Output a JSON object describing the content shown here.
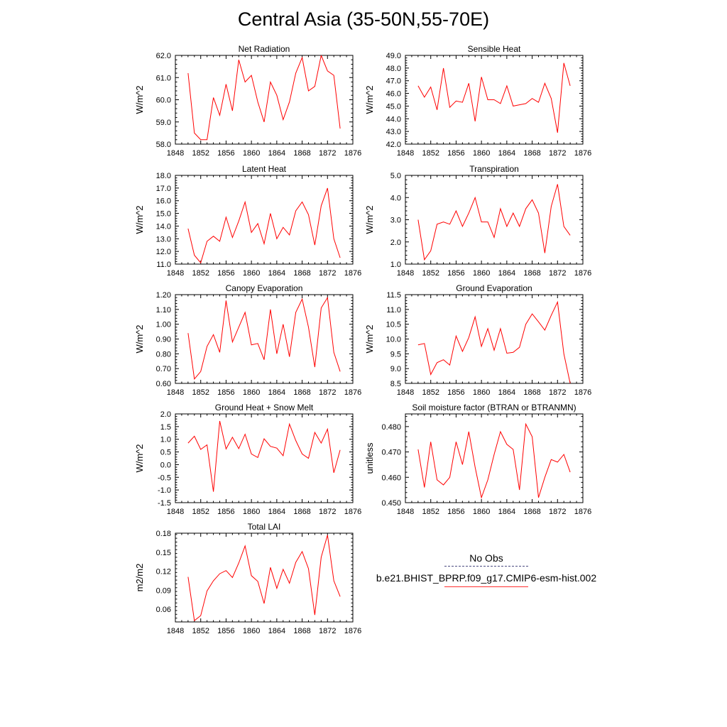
{
  "page": {
    "title": "Central Asia (35-50N,55-70E)"
  },
  "legend": {
    "obs_label": "No Obs",
    "case_label": "b.e21.BHIST_BPRP.f09_g17.CMIP6-esm-hist.002",
    "obs_line_color": "#3a3a8a",
    "case_line_color": "#ff0000"
  },
  "chart_data": [
    {
      "type": "line",
      "title": "Net Radiation",
      "ylabel": "W/m^2",
      "xlim": [
        1848,
        1876
      ],
      "ylim": [
        58.0,
        62.0
      ],
      "x_ticks": [
        1848,
        1852,
        1856,
        1860,
        1864,
        1868,
        1872,
        1876
      ],
      "y_ticks": [
        "58.0",
        "59.0",
        "60.0",
        "61.0",
        "62.0"
      ],
      "line_color": "#ff0000",
      "x": [
        1850,
        1851,
        1852,
        1853,
        1854,
        1855,
        1856,
        1857,
        1858,
        1859,
        1860,
        1861,
        1862,
        1863,
        1864,
        1865,
        1866,
        1867,
        1868,
        1869,
        1870,
        1871,
        1872,
        1873,
        1874
      ],
      "values": [
        61.2,
        58.5,
        58.2,
        58.2,
        60.1,
        59.3,
        60.7,
        59.5,
        61.8,
        60.8,
        61.1,
        59.9,
        59.0,
        60.8,
        60.2,
        59.1,
        59.9,
        61.2,
        61.9,
        60.4,
        60.6,
        62.0,
        61.3,
        61.1,
        58.7
      ]
    },
    {
      "type": "line",
      "title": "Sensible Heat",
      "ylabel": "W/m^2",
      "xlim": [
        1848,
        1876
      ],
      "ylim": [
        42.0,
        49.0
      ],
      "x_ticks": [
        1848,
        1852,
        1856,
        1860,
        1864,
        1868,
        1872,
        1876
      ],
      "y_ticks": [
        "42.0",
        "43.0",
        "44.0",
        "45.0",
        "46.0",
        "47.0",
        "48.0",
        "49.0"
      ],
      "line_color": "#ff0000",
      "x": [
        1850,
        1851,
        1852,
        1853,
        1854,
        1855,
        1856,
        1857,
        1858,
        1859,
        1860,
        1861,
        1862,
        1863,
        1864,
        1865,
        1866,
        1867,
        1868,
        1869,
        1870,
        1871,
        1872,
        1873,
        1874
      ],
      "values": [
        46.6,
        45.7,
        46.5,
        44.7,
        48.0,
        44.9,
        45.4,
        45.3,
        46.8,
        43.8,
        47.3,
        45.5,
        45.5,
        45.2,
        46.6,
        45.0,
        45.1,
        45.2,
        45.6,
        45.3,
        46.8,
        45.6,
        42.9,
        48.4,
        46.6
      ]
    },
    {
      "type": "line",
      "title": "Latent Heat",
      "ylabel": "W/m^2",
      "xlim": [
        1848,
        1876
      ],
      "ylim": [
        11.0,
        18.0
      ],
      "x_ticks": [
        1848,
        1852,
        1856,
        1860,
        1864,
        1868,
        1872,
        1876
      ],
      "y_ticks": [
        "11.0",
        "12.0",
        "13.0",
        "14.0",
        "15.0",
        "16.0",
        "17.0",
        "18.0"
      ],
      "line_color": "#ff0000",
      "x": [
        1850,
        1851,
        1852,
        1853,
        1854,
        1855,
        1856,
        1857,
        1858,
        1859,
        1860,
        1861,
        1862,
        1863,
        1864,
        1865,
        1866,
        1867,
        1868,
        1869,
        1870,
        1871,
        1872,
        1873,
        1874
      ],
      "values": [
        13.8,
        11.7,
        11.1,
        12.8,
        13.2,
        12.8,
        14.7,
        13.1,
        14.4,
        15.9,
        13.5,
        14.2,
        12.6,
        15.0,
        13.0,
        13.9,
        13.3,
        15.2,
        15.9,
        14.9,
        12.5,
        15.6,
        17.0,
        13.0,
        11.5
      ]
    },
    {
      "type": "line",
      "title": "Transpiration",
      "ylabel": "W/m^2",
      "xlim": [
        1848,
        1876
      ],
      "ylim": [
        1.0,
        5.0
      ],
      "x_ticks": [
        1848,
        1852,
        1856,
        1860,
        1864,
        1868,
        1872,
        1876
      ],
      "y_ticks": [
        "1.0",
        "2.0",
        "3.0",
        "4.0",
        "5.0"
      ],
      "line_color": "#ff0000",
      "x": [
        1850,
        1851,
        1852,
        1853,
        1854,
        1855,
        1856,
        1857,
        1858,
        1859,
        1860,
        1861,
        1862,
        1863,
        1864,
        1865,
        1866,
        1867,
        1868,
        1869,
        1870,
        1871,
        1872,
        1873,
        1874
      ],
      "values": [
        3.0,
        1.2,
        1.6,
        2.8,
        2.9,
        2.8,
        3.4,
        2.7,
        3.3,
        4.0,
        2.9,
        2.9,
        2.2,
        3.5,
        2.7,
        3.3,
        2.7,
        3.5,
        3.9,
        3.3,
        1.5,
        3.6,
        4.6,
        2.7,
        2.3
      ]
    },
    {
      "type": "line",
      "title": "Canopy Evaporation",
      "ylabel": "W/m^2",
      "xlim": [
        1848,
        1876
      ],
      "ylim": [
        0.6,
        1.2
      ],
      "x_ticks": [
        1848,
        1852,
        1856,
        1860,
        1864,
        1868,
        1872,
        1876
      ],
      "y_ticks": [
        "0.60",
        "0.70",
        "0.80",
        "0.90",
        "1.00",
        "1.10",
        "1.20"
      ],
      "line_color": "#ff0000",
      "x": [
        1850,
        1851,
        1852,
        1853,
        1854,
        1855,
        1856,
        1857,
        1858,
        1859,
        1860,
        1861,
        1862,
        1863,
        1864,
        1865,
        1866,
        1867,
        1868,
        1869,
        1870,
        1871,
        1872,
        1873,
        1874
      ],
      "values": [
        0.94,
        0.63,
        0.68,
        0.85,
        0.93,
        0.81,
        1.16,
        0.88,
        0.98,
        1.08,
        0.86,
        0.87,
        0.76,
        1.1,
        0.8,
        1.0,
        0.78,
        1.08,
        1.17,
        0.98,
        0.71,
        1.11,
        1.18,
        0.81,
        0.68
      ]
    },
    {
      "type": "line",
      "title": "Ground Evaporation",
      "ylabel": "W/m^2",
      "xlim": [
        1848,
        1876
      ],
      "ylim": [
        8.5,
        11.5
      ],
      "x_ticks": [
        1848,
        1852,
        1856,
        1860,
        1864,
        1868,
        1872,
        1876
      ],
      "y_ticks": [
        "8.5",
        "9.0",
        "9.5",
        "10.0",
        "10.5",
        "11.0",
        "11.5"
      ],
      "line_color": "#ff0000",
      "x": [
        1850,
        1851,
        1852,
        1853,
        1854,
        1855,
        1856,
        1857,
        1858,
        1859,
        1860,
        1861,
        1862,
        1863,
        1864,
        1865,
        1866,
        1867,
        1868,
        1869,
        1870,
        1871,
        1872,
        1873,
        1874
      ],
      "values": [
        9.8,
        9.85,
        8.8,
        9.2,
        9.3,
        9.12,
        10.1,
        9.58,
        10.05,
        10.75,
        9.75,
        10.35,
        9.62,
        10.35,
        9.52,
        9.55,
        9.72,
        10.5,
        10.85,
        10.58,
        10.3,
        10.8,
        11.25,
        9.5,
        8.5
      ]
    },
    {
      "type": "line",
      "title": "Ground Heat + Snow Melt",
      "ylabel": "W/m^2",
      "xlim": [
        1848,
        1876
      ],
      "ylim": [
        -1.5,
        2.0
      ],
      "x_ticks": [
        1848,
        1852,
        1856,
        1860,
        1864,
        1868,
        1872,
        1876
      ],
      "y_ticks": [
        "-1.5",
        "-1.0",
        "-0.5",
        "0.0",
        "0.5",
        "1.0",
        "1.5",
        "2.0"
      ],
      "line_color": "#ff0000",
      "x": [
        1850,
        1851,
        1852,
        1853,
        1854,
        1855,
        1856,
        1857,
        1858,
        1859,
        1860,
        1861,
        1862,
        1863,
        1864,
        1865,
        1866,
        1867,
        1868,
        1869,
        1870,
        1871,
        1872,
        1873,
        1874
      ],
      "values": [
        0.85,
        1.12,
        0.6,
        0.78,
        -1.07,
        1.72,
        0.62,
        1.08,
        0.63,
        1.2,
        0.42,
        0.28,
        1.02,
        0.72,
        0.65,
        0.35,
        1.6,
        0.95,
        0.42,
        0.25,
        1.27,
        0.85,
        1.4,
        -0.32,
        0.58
      ]
    },
    {
      "type": "line",
      "title": "Soil moisture factor (BTRAN or BTRANMN)",
      "ylabel": "unitless",
      "xlim": [
        1848,
        1876
      ],
      "ylim": [
        0.45,
        0.485
      ],
      "x_ticks": [
        1848,
        1852,
        1856,
        1860,
        1864,
        1868,
        1872,
        1876
      ],
      "y_ticks": [
        "0.450",
        "0.460",
        "0.470",
        "0.480"
      ],
      "line_color": "#ff0000",
      "x": [
        1850,
        1851,
        1852,
        1853,
        1854,
        1855,
        1856,
        1857,
        1858,
        1859,
        1860,
        1861,
        1862,
        1863,
        1864,
        1865,
        1866,
        1867,
        1868,
        1869,
        1870,
        1871,
        1872,
        1873,
        1874
      ],
      "values": [
        0.471,
        0.456,
        0.474,
        0.459,
        0.457,
        0.46,
        0.474,
        0.465,
        0.478,
        0.464,
        0.452,
        0.459,
        0.469,
        0.478,
        0.473,
        0.471,
        0.455,
        0.481,
        0.476,
        0.452,
        0.46,
        0.467,
        0.466,
        0.469,
        0.462
      ]
    },
    {
      "type": "line",
      "title": "Total LAI",
      "ylabel": "m2/m2",
      "xlim": [
        1848,
        1876
      ],
      "ylim": [
        0.04,
        0.18
      ],
      "x_ticks": [
        1848,
        1852,
        1856,
        1860,
        1864,
        1868,
        1872,
        1876
      ],
      "y_ticks": [
        "0.06",
        "0.09",
        "0.12",
        "0.15",
        "0.18"
      ],
      "line_color": "#ff0000",
      "x": [
        1850,
        1851,
        1852,
        1853,
        1854,
        1855,
        1856,
        1857,
        1858,
        1859,
        1860,
        1861,
        1862,
        1863,
        1864,
        1865,
        1866,
        1867,
        1868,
        1869,
        1870,
        1871,
        1872,
        1873,
        1874
      ],
      "values": [
        0.111,
        0.042,
        0.05,
        0.089,
        0.105,
        0.116,
        0.121,
        0.11,
        0.133,
        0.16,
        0.113,
        0.104,
        0.069,
        0.126,
        0.093,
        0.123,
        0.101,
        0.134,
        0.151,
        0.124,
        0.051,
        0.142,
        0.177,
        0.105,
        0.08
      ]
    }
  ]
}
